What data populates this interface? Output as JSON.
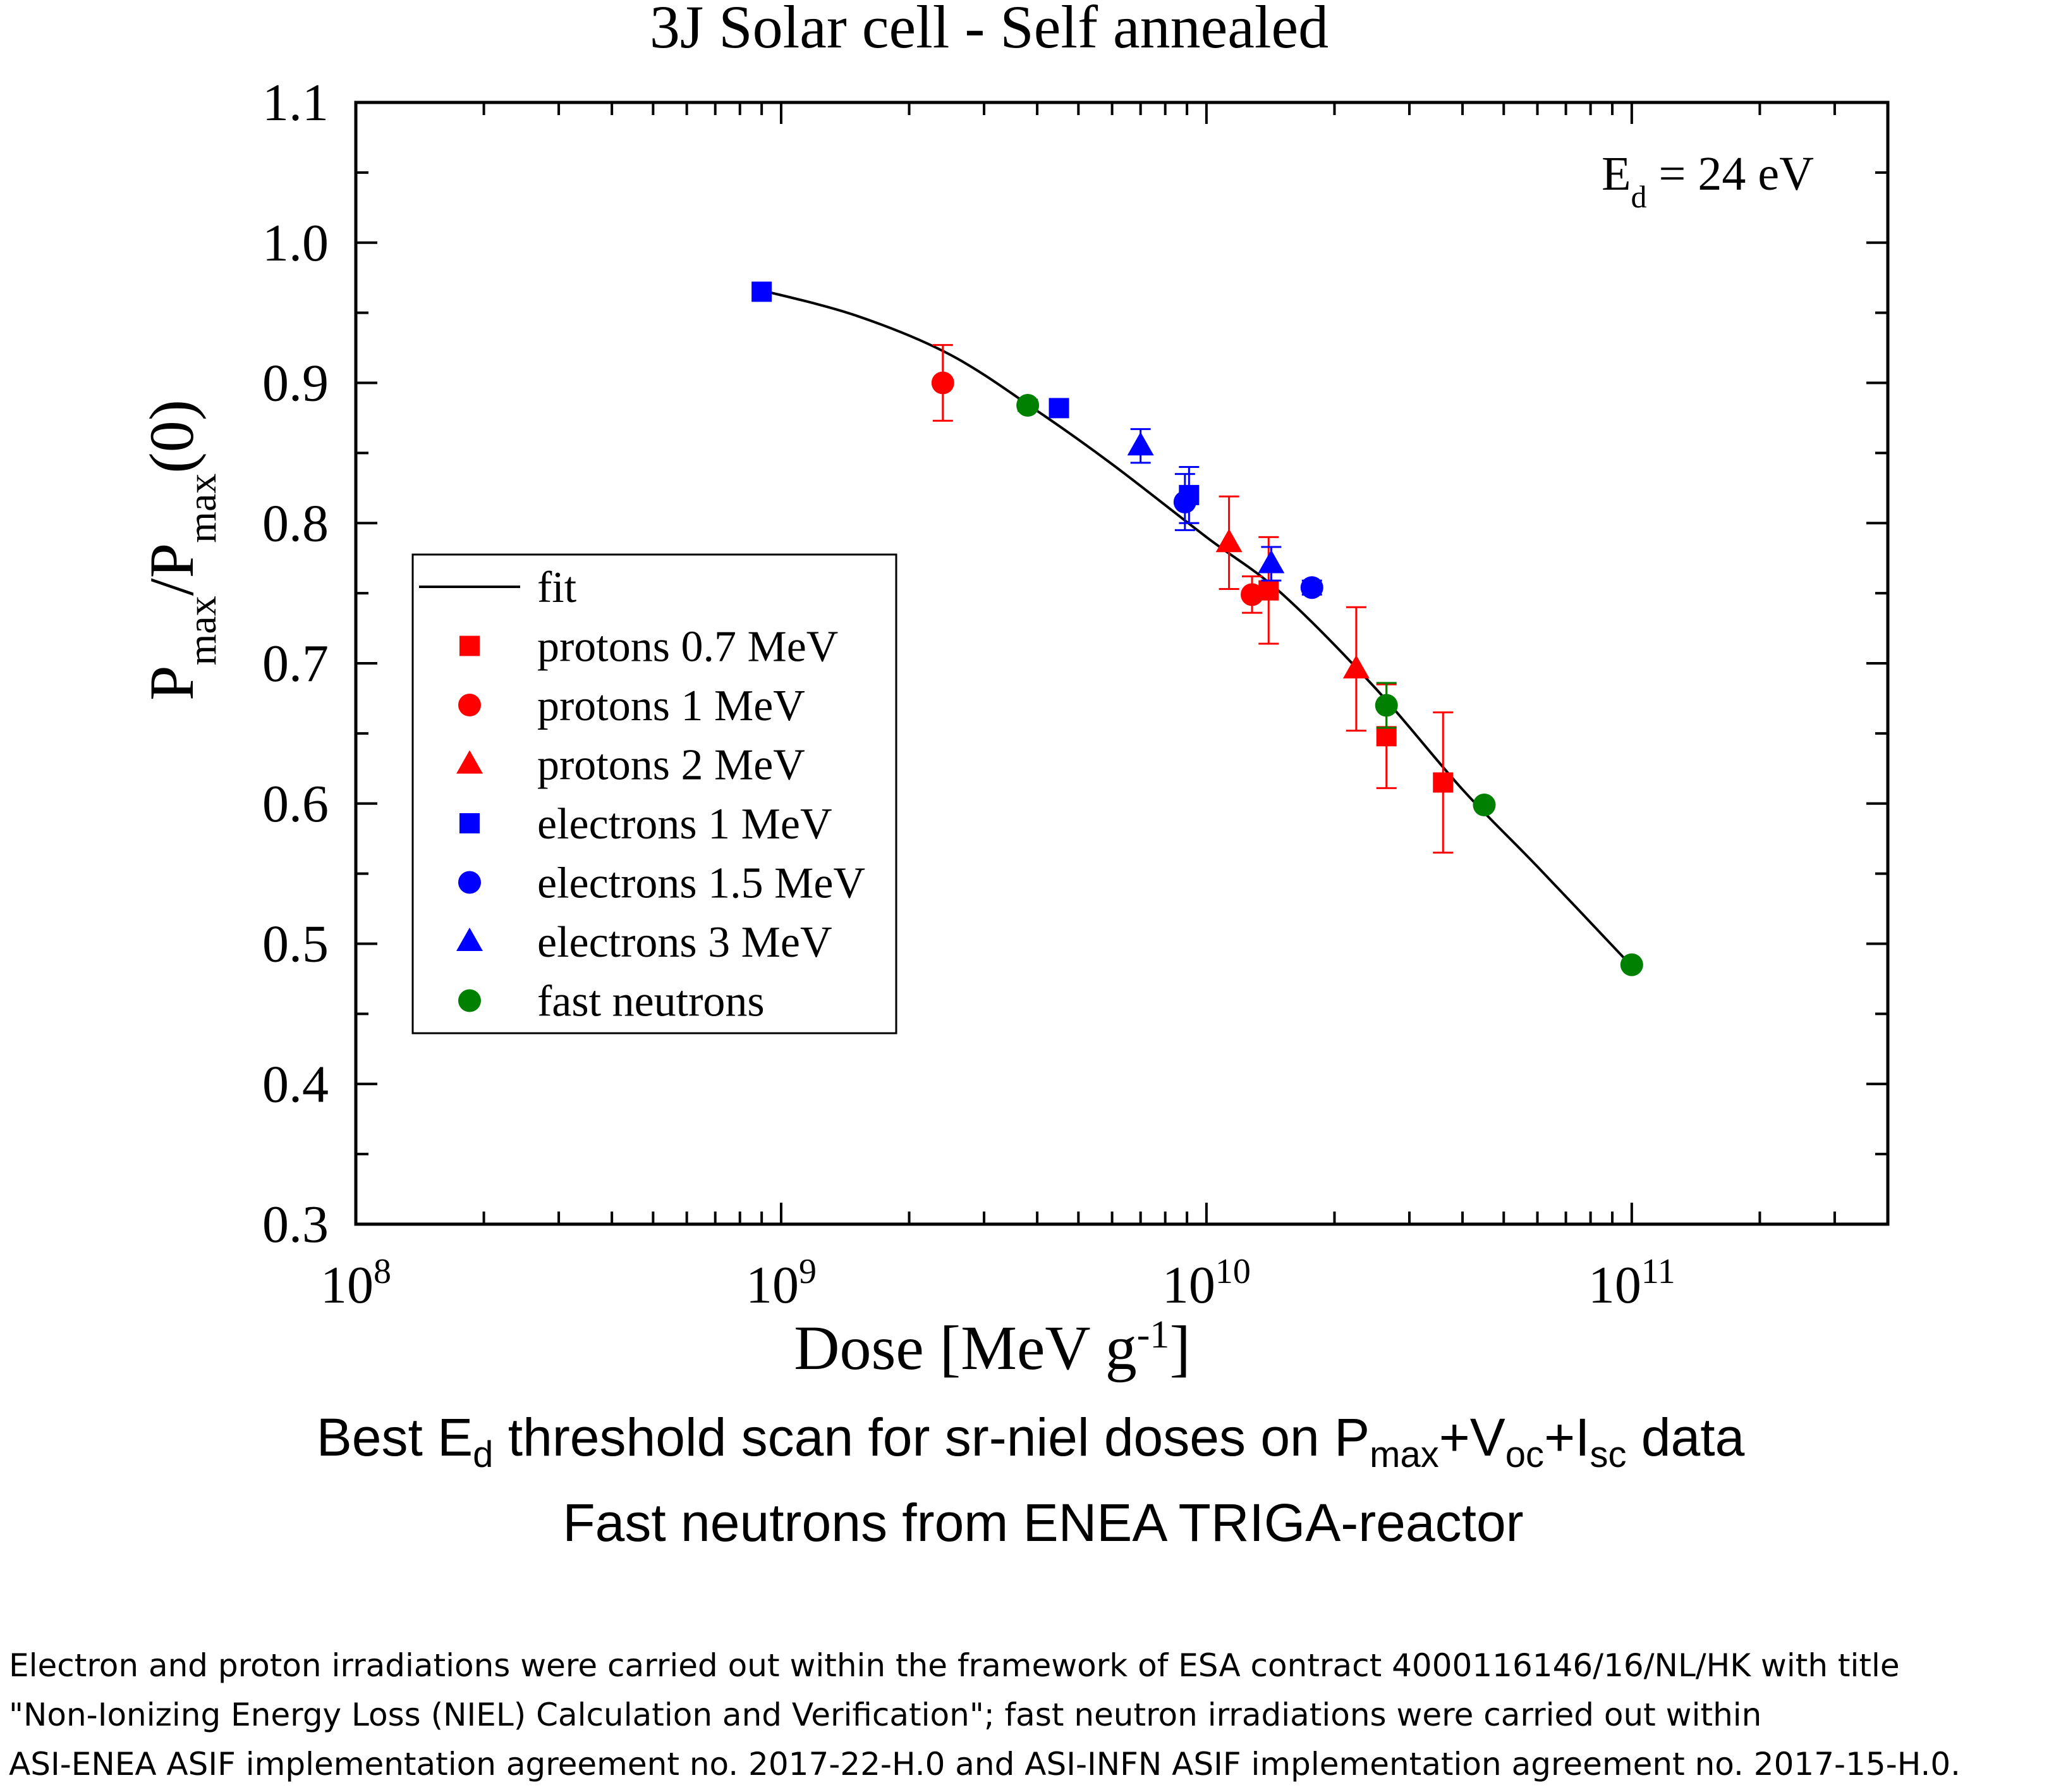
{
  "chart_data": {
    "type": "scatter",
    "title": "3J Solar cell - Self annealed",
    "xlabel": "Dose [MeV g",
    "xlabel_sup": "-1",
    "xlabel_end": "]",
    "ylabel_base": "P",
    "ylabel_sub": "max",
    "ylabel_mid": "/P",
    "ylabel_sub2": "max",
    "ylabel_end": "(0)",
    "x_scale": "log",
    "xlim": [
      100000000,
      400000000000
    ],
    "ylim": [
      0.3,
      1.1
    ],
    "x_ticks": [
      {
        "base": "10",
        "exp": "8",
        "value": 100000000
      },
      {
        "base": "10",
        "exp": "9",
        "value": 1000000000
      },
      {
        "base": "10",
        "exp": "10",
        "value": 10000000000
      },
      {
        "base": "10",
        "exp": "11",
        "value": 100000000000
      }
    ],
    "y_ticks": [
      "0.3",
      "0.4",
      "0.5",
      "0.6",
      "0.7",
      "0.8",
      "0.9",
      "1.0",
      "1.1"
    ],
    "grid": false,
    "annotation": {
      "base": "E",
      "sub": "d",
      "rest": " = 24 eV"
    },
    "legend_position": "center-left",
    "fit": {
      "label": "fit",
      "color": "#000000",
      "points": [
        [
          900000000,
          0.966
        ],
        [
          1500000000,
          0.948
        ],
        [
          2500000000,
          0.92
        ],
        [
          4000000000,
          0.88
        ],
        [
          6000000000,
          0.842
        ],
        [
          10000000000,
          0.79
        ],
        [
          15000000000,
          0.75
        ],
        [
          25000000000,
          0.682
        ],
        [
          40000000000,
          0.61
        ],
        [
          60000000000,
          0.555
        ],
        [
          100000000000,
          0.484
        ]
      ]
    },
    "series": [
      {
        "name": "protons 0.7 MeV",
        "marker": "square",
        "color": "#ff0000",
        "points": [
          [
            14000000000,
            0.752,
            0.038
          ],
          [
            26500000000,
            0.648,
            0.037
          ],
          [
            36000000000,
            0.615,
            0.05
          ]
        ]
      },
      {
        "name": "protons 1 MeV",
        "marker": "circle",
        "color": "#ff0000",
        "points": [
          [
            2400000000,
            0.9,
            0.027
          ],
          [
            12800000000,
            0.749,
            0.013
          ]
        ]
      },
      {
        "name": "protons 2 MeV",
        "marker": "triangle",
        "color": "#ff0000",
        "points": [
          [
            11300000000,
            0.786,
            0.033
          ],
          [
            22500000000,
            0.696,
            0.044
          ]
        ]
      },
      {
        "name": "electrons 1 MeV",
        "marker": "square",
        "color": "#0000ff",
        "points": [
          [
            900000000,
            0.965,
            0
          ],
          [
            4500000000,
            0.882,
            0
          ],
          [
            9100000000,
            0.82,
            0.02
          ]
        ]
      },
      {
        "name": "electrons 1.5 MeV",
        "marker": "circle",
        "color": "#0000ff",
        "points": [
          [
            8900000000,
            0.815,
            0.02
          ],
          [
            17700000000,
            0.754,
            0.005
          ]
        ]
      },
      {
        "name": "electrons 3 MeV",
        "marker": "triangle",
        "color": "#0000ff",
        "points": [
          [
            7000000000,
            0.855,
            0.012
          ],
          [
            14200000000,
            0.771,
            0.012
          ]
        ]
      },
      {
        "name": "fast neutrons",
        "marker": "circle",
        "color": "#008000",
        "points": [
          [
            3800000000,
            0.884,
            0.004
          ],
          [
            26500000000,
            0.67,
            0.016
          ],
          [
            45000000000,
            0.599,
            0
          ],
          [
            100000000000,
            0.485,
            0
          ]
        ]
      }
    ]
  },
  "caption": {
    "line1": {
      "a": "Best E",
      "a_sub": "d",
      "b": " threshold scan for sr-niel doses on P",
      "b_sub": "max",
      "c": "+V",
      "c_sub": "oc",
      "d": "+I",
      "d_sub": "sc",
      "e": " data"
    },
    "line2": "Fast neutrons from ENEA TRIGA-reactor"
  },
  "footnote": [
    "Electron and proton irradiations were carried out within the framework of ESA contract 4000116146/16/NL/HK with title",
    "\"Non-Ionizing Energy Loss (NIEL) Calculation and Verification\"; fast neutron irradiations were carried out within",
    "ASI-ENEA ASIF  implementation agreement no. 2017-22-H.0 and ASI-INFN ASIF implementation agreement no. 2017-15-H.0."
  ]
}
